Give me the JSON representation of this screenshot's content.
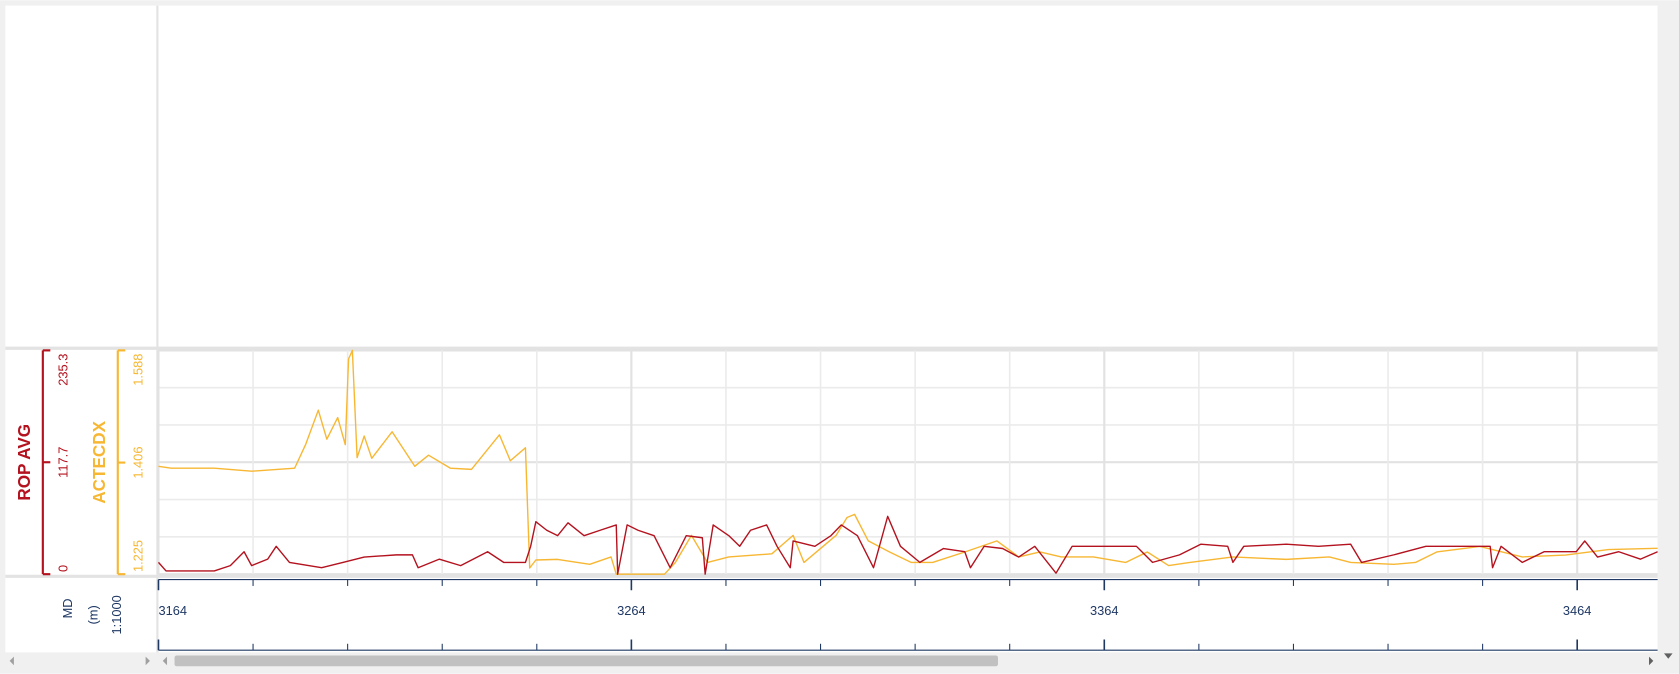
{
  "chart_data": {
    "type": "line",
    "x_label": "MD",
    "x_unit": "(m)",
    "scale": "1:1000",
    "xlim": [
      3164,
      3481
    ],
    "xticks": [
      3164,
      3264,
      3364,
      3464
    ],
    "ylim": [
      0,
      235.3
    ],
    "yticks": [
      0,
      117.7,
      235.3
    ],
    "y2lim": [
      1.225,
      1.588
    ],
    "y2ticks": [
      1.225,
      1.406,
      1.588
    ],
    "grid": true,
    "series": [
      {
        "name": "ROP AVG",
        "color": "#b3121e",
        "x": [
          3164,
          3165.6,
          3175.8,
          3179.2,
          3182.1,
          3183.7,
          3187.1,
          3188.9,
          3191.7,
          3198.5,
          3203.0,
          3207.5,
          3214.3,
          3217.7,
          3218.9,
          3223.4,
          3227.9,
          3233.6,
          3237.0,
          3241.6,
          3242.7,
          3243.8,
          3246.1,
          3248.4,
          3250.6,
          3254.0,
          3257.4,
          3260.8,
          3261.1,
          3263.1,
          3265.4,
          3268.8,
          3272.2,
          3275.6,
          3279.0,
          3279.6,
          3281.3,
          3284.6,
          3286.9,
          3289.2,
          3292.6,
          3294.8,
          3297.6,
          3298.2,
          3302.8,
          3306.2,
          3308.4,
          3311.8,
          3315.2,
          3318.2,
          3320.9,
          3325.0,
          3330.0,
          3334.5,
          3335.7,
          3338.6,
          3342.5,
          3345.9,
          3349.3,
          3353.8,
          3357.2,
          3364.0,
          3370.8,
          3374.2,
          3379.9,
          3384.4,
          3390.1,
          3391.2,
          3393.5,
          3402.5,
          3409.3,
          3416.1,
          3418.4,
          3425.2,
          3432.0,
          3441.1,
          3445.6,
          3446.1,
          3447.9,
          3452.4,
          3457.0,
          3463.8,
          3465.6,
          3468.3,
          3472.8,
          3477.4,
          3481
        ],
        "values": [
          12.4,
          3.4,
          3.4,
          9.0,
          23.6,
          9.0,
          15.8,
          29.3,
          12.4,
          6.8,
          12.4,
          18.0,
          20.3,
          20.3,
          6.8,
          15.8,
          9.0,
          23.6,
          12.4,
          12.4,
          29.3,
          55.2,
          46.2,
          40.5,
          54.0,
          40.5,
          46.2,
          51.8,
          0,
          51.8,
          46.2,
          40.5,
          6.8,
          40.5,
          38.3,
          0,
          51.8,
          40.5,
          29.3,
          46.2,
          51.8,
          29.3,
          6.8,
          34.9,
          29.3,
          40.5,
          51.8,
          40.5,
          6.8,
          60.8,
          29.3,
          12.4,
          27.0,
          23.6,
          6.8,
          29.3,
          27.0,
          18.0,
          29.3,
          1.1,
          29.3,
          29.3,
          29.3,
          12.4,
          20.3,
          31.5,
          29.3,
          12.4,
          29.3,
          31.5,
          29.3,
          31.5,
          12.4,
          20.3,
          29.3,
          29.3,
          29.3,
          6.8,
          29.3,
          12.4,
          23.6,
          23.6,
          34.9,
          18.0,
          23.6,
          15.8,
          23.6
        ]
      },
      {
        "name": "ACTECDX",
        "color": "#f7b733",
        "axis": "y2",
        "x": [
          3164,
          3166.7,
          3175.8,
          3183.7,
          3192.8,
          3195.1,
          3197.8,
          3199.6,
          3201.9,
          3203.5,
          3204.2,
          3205.0,
          3206.0,
          3207.5,
          3209.1,
          3213.4,
          3218.2,
          3221.1,
          3225.7,
          3230.2,
          3236.1,
          3238.4,
          3241.6,
          3242.5,
          3243.8,
          3248.4,
          3255.2,
          3259.7,
          3260.8,
          3271.0,
          3273.3,
          3276.7,
          3280.1,
          3284.6,
          3293.7,
          3298.2,
          3300.5,
          3307.3,
          3309.6,
          3311.2,
          3314.1,
          3318.6,
          3323.2,
          3327.7,
          3334.5,
          3341.3,
          3345.9,
          3350.4,
          3354.9,
          3361.7,
          3368.5,
          3373.1,
          3377.6,
          3382.1,
          3391.2,
          3402.5,
          3411.6,
          3416.1,
          3425.2,
          3429.8,
          3434.3,
          3443.4,
          3452.4,
          3461.5,
          3470.6,
          3481
        ],
        "values": [
          1.4,
          1.397,
          1.397,
          1.392,
          1.397,
          1.435,
          1.491,
          1.444,
          1.479,
          1.435,
          1.574,
          1.588,
          1.414,
          1.449,
          1.413,
          1.456,
          1.4,
          1.418,
          1.397,
          1.395,
          1.451,
          1.409,
          1.43,
          1.235,
          1.248,
          1.249,
          1.241,
          1.253,
          1.225,
          1.225,
          1.244,
          1.288,
          1.244,
          1.253,
          1.258,
          1.288,
          1.244,
          1.288,
          1.317,
          1.322,
          1.279,
          1.261,
          1.244,
          1.244,
          1.261,
          1.279,
          1.253,
          1.261,
          1.253,
          1.253,
          1.244,
          1.261,
          1.239,
          1.244,
          1.253,
          1.249,
          1.253,
          1.244,
          1.241,
          1.244,
          1.261,
          1.27,
          1.253,
          1.256,
          1.265,
          1.267
        ]
      }
    ]
  }
}
